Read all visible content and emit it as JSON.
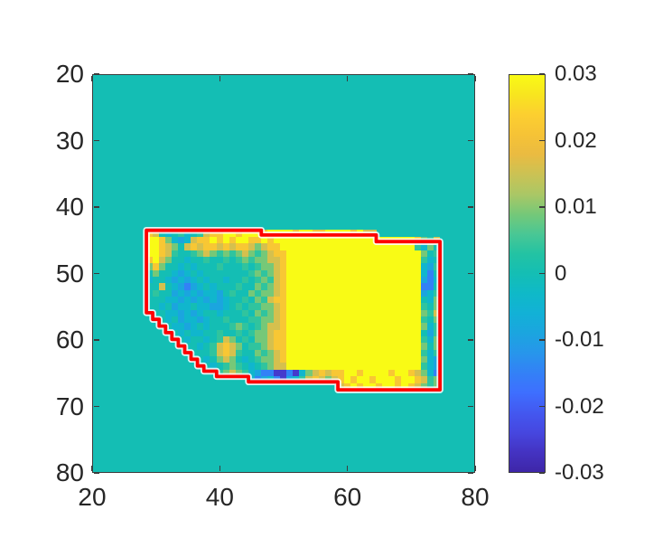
{
  "figure": {
    "background": "#ffffff",
    "description": "Pseudocolor heatmap of a masked region with red boundary outline and parula colorbar"
  },
  "axes": {
    "box_color": "#3c3c3c",
    "tick_label_color": "#262626",
    "x": {
      "range": [
        20,
        80
      ],
      "tick_values": [
        20,
        40,
        60,
        80
      ],
      "tick_labels": [
        "20",
        "40",
        "60",
        "80"
      ]
    },
    "y": {
      "range": [
        20,
        80
      ],
      "direction": "down",
      "tick_values": [
        20,
        30,
        40,
        50,
        60,
        70,
        80
      ],
      "tick_labels": [
        "20",
        "30",
        "40",
        "50",
        "60",
        "70",
        "80"
      ]
    }
  },
  "colorbar": {
    "clim": [
      -0.03,
      0.03
    ],
    "tick_values": [
      0.03,
      0.02,
      0.01,
      0,
      -0.01,
      -0.02,
      -0.03
    ],
    "tick_labels": [
      "0.03",
      "0.02",
      "0.01",
      "0",
      "-0.01",
      "-0.02",
      "-0.03"
    ]
  },
  "chart_data": {
    "type": "heatmap",
    "x_range": [
      20,
      80
    ],
    "y_range": [
      20,
      80
    ],
    "clim": [
      -0.03,
      0.03
    ],
    "background_value": 0,
    "colormap": {
      "name": "parula",
      "stops": [
        [
          0.0,
          "#3E26A8"
        ],
        [
          0.05,
          "#4433C2"
        ],
        [
          0.1,
          "#4647E0"
        ],
        [
          0.15,
          "#4358F0"
        ],
        [
          0.2,
          "#3E6FFF"
        ],
        [
          0.25,
          "#3381F6"
        ],
        [
          0.3,
          "#2796EB"
        ],
        [
          0.35,
          "#1BA5DF"
        ],
        [
          0.4,
          "#12B1D6"
        ],
        [
          0.45,
          "#0FB9C8"
        ],
        [
          0.5,
          "#14BEB4"
        ],
        [
          0.55,
          "#23C3A3"
        ],
        [
          0.6,
          "#4AC794"
        ],
        [
          0.65,
          "#76C878"
        ],
        [
          0.7,
          "#ABC765"
        ],
        [
          0.75,
          "#CBC254"
        ],
        [
          0.8,
          "#EABB41"
        ],
        [
          0.85,
          "#F6C336"
        ],
        [
          0.9,
          "#FCCF30"
        ],
        [
          0.95,
          "#F8E51F"
        ],
        [
          1.0,
          "#F9FB15"
        ]
      ]
    },
    "grid": {
      "x0": 28.5,
      "y0": 43.5,
      "cell_w": 1,
      "cell_h": 1,
      "levels": {
        "A": 0.03,
        "B": 0.022,
        "C": 0.016,
        "D": 0.009,
        "E": 0.004,
        "F": 0.0,
        "G": -0.004,
        "H": -0.009,
        "I": -0.015,
        "J": -0.026
      },
      "rows": [
        "BCFGFEGFECBBAABAAABAAAABAABBAAAABACC..........",
        "AABDGHGCBBABABAABBABAAAAAAAAAAAAAAAAAAAAAABDEC",
        "AABCDFCBCBBCBCBBCDCBBAAAAAAAAAAAAAAAAAAAAAEGD",
        "AABCEFFEDCDEDEDCDEDCBBAAAAAAAAAAAAAAAAAAAAADFE",
        "BACDFFGFFEFFEFEDEDDCCBAAAAAAAAAAAAAAAAAAAAAEGF",
        "DBDFFGFGFFFEFFFEFEDDCBAAAAAAAAAAAAAAAAAAAAAGHE",
        "FDFFGHGFGFFFFFFFEDEDCBAAAAAAAAAAAAAAAAAAAAAGIF",
        "GFFGHGHGFGFFGFFEFEDECBAAAAAAAAAAAAAAAAAAAAAHIG",
        "FFCFGHIHGFGFFFEFFDEDCBAAAAAAAAAAAAAAAAAAAAAIIF",
        "FEFFHGHGHGGHFEFFDEDDCBAAAAAAAAAAAAAAAAAAAAAHGE",
        "FFFGGHGHGHGHGFFEFDECBBAAAAAAAAAAAAAAAAAAAAAFGD",
        "FFGFHGGFGGHHGFEFEEDDCBAAAAAAAAAAAAAAAAAAAAAEFD",
        ".FFGGHGHGFFGFFFEFDEDCBAAAAAAAAAAAAAAAAAAAAADEC",
        "..FGFHGGHGFFEFFFEEDDCBAAAAAAAAAAAAAAAAAAAAAEFD",
        "...FGGHGFGFFFEDEFEDCCBAAAAAAAAAAAAAAAAAAAAADGE",
        "....FGFGGFFEFFEFEDDCBBAAAAAAAAAAAAAAAAAAAAAFHE",
        ".....FGFFGFECDFEFDDCBBAAAAAAAAAAAAAAAAAAAAAEGD",
        "......FFGFECBCDFEEDCBBAAAAAAAAAAAAAAAAAAAAADFD",
        ".......FFFECBCEFFDEDCBAAAAAAAAAAAAAAAAAAAAAEGE",
        "........FGFDCDFGFEDDCBAAAAAAAAAAAAAAAAAAAAADGH",
        ".........FGFEDEFGFEDCCAAAAAAAAAAAAAAAAAAAAAEGH",
        "...........EDCDEGHIIJJIJGDCBCBBAABAAAABAABCDGI",
        "................GIHGIJHGECBCDCBABAABAAABAABCED",
        "..............................CBABAABAABABCDED"
      ]
    },
    "region_outline": {
      "color": "#ff0000",
      "halo_color": "rgba(255,255,255,0.85)",
      "points": [
        [
          28.5,
          43.5
        ],
        [
          46.5,
          43.5
        ],
        [
          46.5,
          44.2
        ],
        [
          64.5,
          44.2
        ],
        [
          64.5,
          45.2
        ],
        [
          74.5,
          45.2
        ],
        [
          74.5,
          67.5
        ],
        [
          58.5,
          67.5
        ],
        [
          58.5,
          66.3
        ],
        [
          44.5,
          66.3
        ],
        [
          44.5,
          65.5
        ],
        [
          39.5,
          65.5
        ],
        [
          39.5,
          64.7
        ],
        [
          37.5,
          64.7
        ],
        [
          37.5,
          63.9
        ],
        [
          36.5,
          63.9
        ],
        [
          36.5,
          62.9
        ],
        [
          35.5,
          62.9
        ],
        [
          35.5,
          61.9
        ],
        [
          34.5,
          61.9
        ],
        [
          34.5,
          60.9
        ],
        [
          33.5,
          60.9
        ],
        [
          33.5,
          59.9
        ],
        [
          32.5,
          59.9
        ],
        [
          32.5,
          58.9
        ],
        [
          31.5,
          58.9
        ],
        [
          31.5,
          57.9
        ],
        [
          30.5,
          57.9
        ],
        [
          30.5,
          56.9
        ],
        [
          29.5,
          56.9
        ],
        [
          29.5,
          55.9
        ],
        [
          28.5,
          55.9
        ]
      ]
    }
  }
}
